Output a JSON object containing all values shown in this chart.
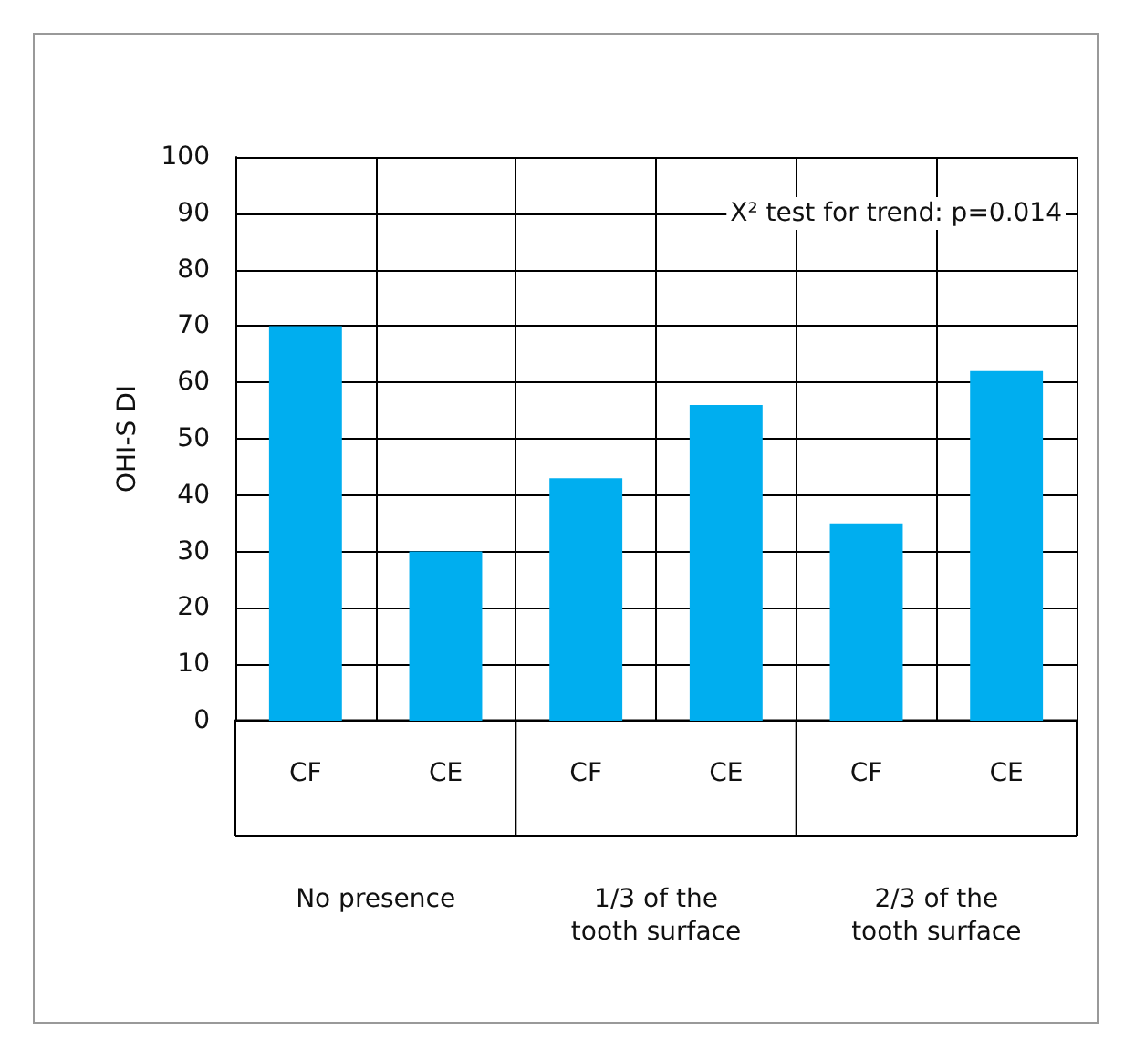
{
  "chart_data": {
    "type": "bar",
    "ylabel": "OHI-S DI",
    "categories": [
      "CF",
      "CE",
      "CF",
      "CE",
      "CF",
      "CE"
    ],
    "values": [
      70,
      30,
      43,
      56,
      35,
      62
    ],
    "color": "#00aeef",
    "ylim": [
      0,
      100
    ],
    "yticks": [
      0,
      10,
      20,
      30,
      40,
      50,
      60,
      70,
      80,
      90,
      100
    ],
    "grid": true,
    "annotations": [
      "X² test for trend: p=0.014",
      "No presence",
      "1/3 of the\ntooth surface",
      "2/3 of the\ntooth surface"
    ]
  }
}
